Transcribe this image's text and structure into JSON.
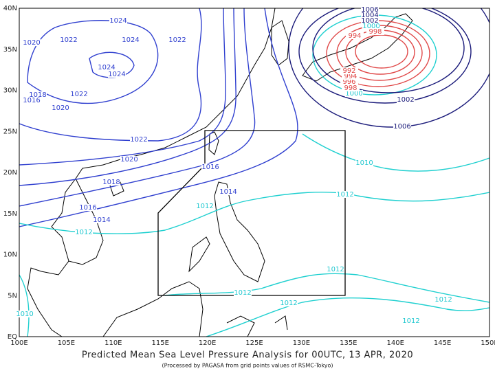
{
  "map": {
    "title": "Predicted Mean Sea Level Pressure Analysis for 00UTC, 13 APR, 2020",
    "subtitle": "(Processed by PAGASA from grid points values of RSMC-Tokyo)",
    "x_labels": [
      "100E",
      "105E",
      "110E",
      "115E",
      "120E",
      "125E",
      "130E",
      "135E",
      "140E",
      "145E",
      "150E"
    ],
    "y_labels": [
      "40N",
      "35N",
      "30N",
      "25N",
      "20N",
      "15N",
      "10N",
      "5N",
      "EQ"
    ],
    "isobar_labels": [
      "1024",
      "1024",
      "1020",
      "1022",
      "1022",
      "1024",
      "1024",
      "1018",
      "1022",
      "1016",
      "1020",
      "1022",
      "1020",
      "1018",
      "1016",
      "1014",
      "1012",
      "1016",
      "1014",
      "1012",
      "1010",
      "1012",
      "1012",
      "1012",
      "1012",
      "1012",
      "1012",
      "1010",
      "1002",
      "1006",
      "1000",
      "998",
      "996",
      "994",
      "992",
      "994",
      "1006",
      "1004",
      "1002",
      "1000",
      "998"
    ]
  }
}
